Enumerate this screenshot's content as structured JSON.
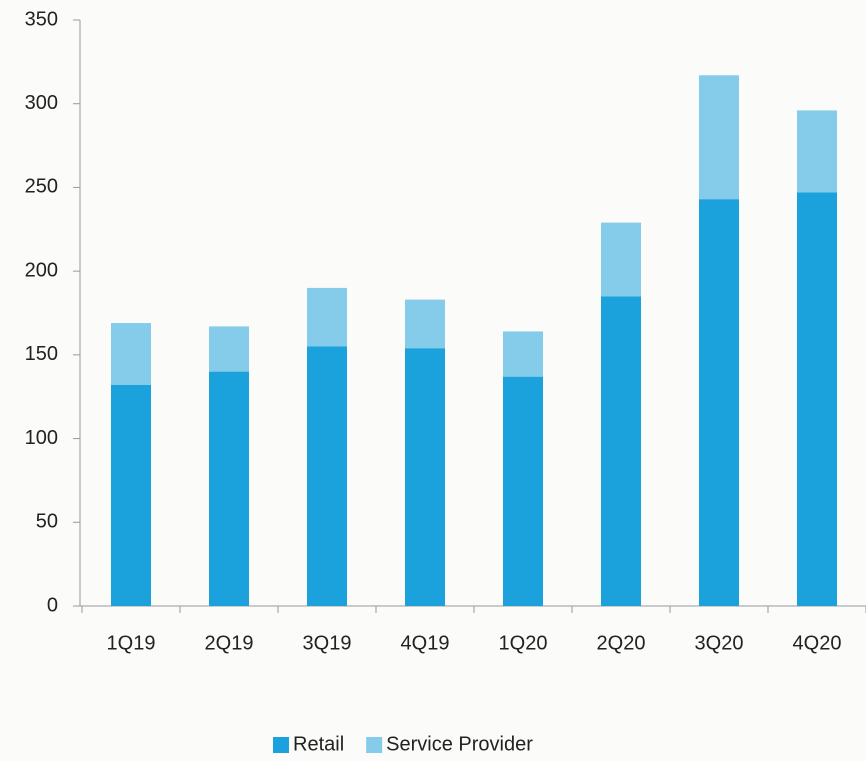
{
  "chart_data": {
    "type": "stacked_bar",
    "categories": [
      "1Q19",
      "2Q19",
      "3Q19",
      "4Q19",
      "1Q20",
      "2Q20",
      "3Q20",
      "4Q20"
    ],
    "series": [
      {
        "name": "Retail",
        "color": "#1ba1dc",
        "values": [
          132,
          140,
          155,
          154,
          137,
          185,
          243,
          247
        ]
      },
      {
        "name": "Service Provider",
        "color": "#85cbea",
        "values": [
          37,
          27,
          35,
          29,
          27,
          44,
          74,
          49
        ]
      }
    ],
    "ylim": [
      0,
      350
    ],
    "yticks": [
      0,
      50,
      100,
      150,
      200,
      250,
      300,
      350
    ],
    "grid": false,
    "legend": "bottom"
  }
}
